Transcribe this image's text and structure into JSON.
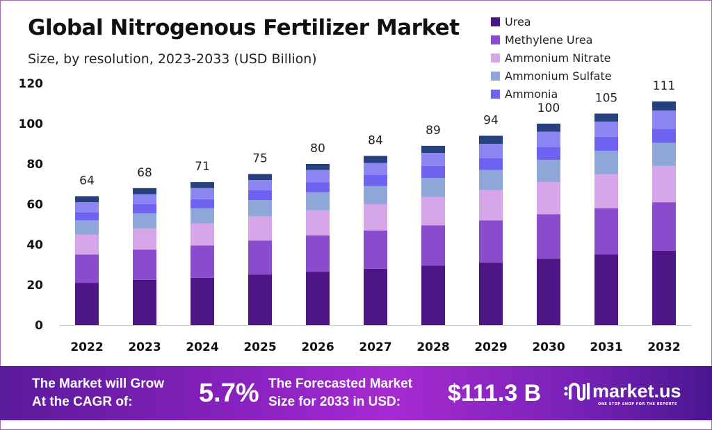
{
  "title": "Global Nitrogenous Fertilizer Market",
  "subtitle": "Size, by resolution, 2023-2033 (USD Billion)",
  "chart_data": {
    "type": "bar",
    "stacked": true,
    "categories": [
      "2022",
      "2023",
      "2024",
      "2025",
      "2026",
      "2027",
      "2028",
      "2029",
      "2030",
      "2031",
      "2032"
    ],
    "totals": [
      "64",
      "68",
      "71",
      "75",
      "80",
      "84",
      "89",
      "94",
      "100",
      "105",
      "111"
    ],
    "ylim": [
      0,
      120
    ],
    "yticks": [
      "0",
      "20",
      "40",
      "60",
      "80",
      "100",
      "120"
    ],
    "grid": false,
    "legend_position": "top-right",
    "series": [
      {
        "name": "Urea",
        "color": "#4e1585",
        "values": [
          21,
          22.5,
          23.5,
          25,
          26.5,
          28,
          29.5,
          31,
          33,
          35,
          37
        ]
      },
      {
        "name": "Methylene Urea",
        "color": "#8a4bcc",
        "values": [
          14,
          15,
          16,
          17,
          18,
          19,
          20,
          21,
          22,
          23,
          24
        ]
      },
      {
        "name": "Ammonium Nitrate",
        "color": "#d6a6e8",
        "values": [
          10,
          10.5,
          11,
          12,
          12.5,
          13,
          14,
          15,
          16,
          17,
          18
        ]
      },
      {
        "name": "Ammonium Sulfate",
        "color": "#8fa6d8",
        "values": [
          7,
          7.5,
          7.5,
          8,
          9,
          9,
          9.5,
          10,
          11,
          11.5,
          11.5
        ]
      },
      {
        "name": "Ammonia",
        "color": "#6d63f0",
        "values": [
          4,
          4.5,
          4.5,
          5,
          5,
          5.5,
          6,
          6,
          6.5,
          7,
          7
        ]
      },
      {
        "color": "#8c86f2",
        "values": [
          5,
          5,
          5.5,
          5,
          6,
          6,
          6.5,
          7,
          7.5,
          7.5,
          9
        ]
      },
      {
        "color": "#27407e",
        "values": [
          3,
          3,
          3,
          3,
          3,
          3.5,
          3.5,
          4,
          4,
          4,
          4.5
        ]
      }
    ]
  },
  "banner": {
    "cagr_label_1": "The Market will Grow",
    "cagr_label_2": "At the CAGR of:",
    "cagr_value": "5.7%",
    "forecast_label_1": "The Forecasted Market",
    "forecast_label_2": "Size for 2033 in USD:",
    "forecast_value": "$111.3 B",
    "logo_text": "market.us",
    "logo_tagline": "ONE STOP SHOP FOR THE REPORTS"
  }
}
